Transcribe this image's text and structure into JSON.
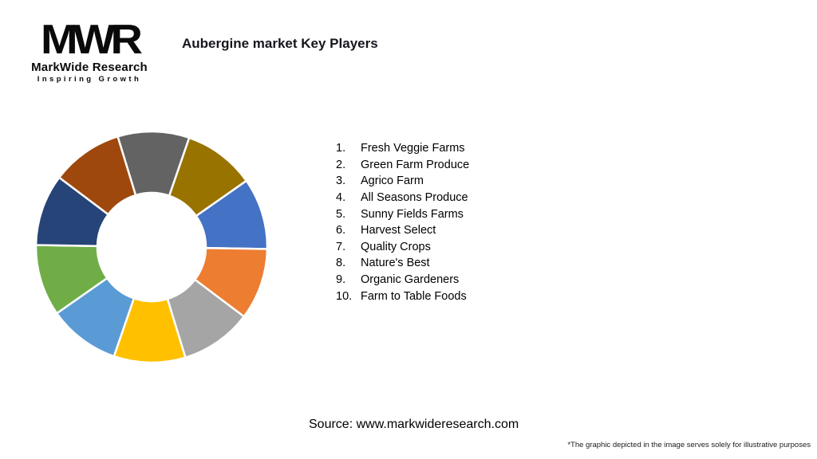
{
  "logo": {
    "acronym": "MWR",
    "name": "MarkWide Research",
    "tagline": "Inspiring Growth"
  },
  "header": {
    "title": "Aubergine market Key Players"
  },
  "chart_data": {
    "type": "pie",
    "subtype": "donut",
    "title": "Aubergine market Key Players",
    "categories": [
      "Fresh Veggie Farms",
      "Green Farm Produce",
      "Agrico Farm",
      "All Seasons Produce",
      "Sunny Fields Farms",
      "Harvest Select",
      "Quality Crops",
      "Nature's Best",
      "Organic Gardeners",
      "Farm to Table Foods"
    ],
    "values": [
      10,
      10,
      10,
      10,
      10,
      10,
      10,
      10,
      10,
      10
    ],
    "colors": [
      "#4472C4",
      "#ED7D31",
      "#A5A5A5",
      "#FFC000",
      "#5B9BD5",
      "#70AD47",
      "#264478",
      "#9E480E",
      "#636363",
      "#997300"
    ],
    "start_angle_deg": 55,
    "inner_radius_ratio": 0.47,
    "slice_border_color": "#FFFFFF",
    "legend_position": "right-numbered-list",
    "grid": false
  },
  "players": [
    {
      "rank": "1.",
      "name": "Fresh Veggie Farms"
    },
    {
      "rank": "2.",
      "name": "Green Farm Produce"
    },
    {
      "rank": "3.",
      "name": "Agrico Farm"
    },
    {
      "rank": "4.",
      "name": "All Seasons Produce"
    },
    {
      "rank": "5.",
      "name": "Sunny Fields Farms"
    },
    {
      "rank": "6.",
      "name": "Harvest Select"
    },
    {
      "rank": "7.",
      "name": "Quality Crops"
    },
    {
      "rank": "8.",
      "name": "Nature's Best"
    },
    {
      "rank": "9.",
      "name": "Organic Gardeners"
    },
    {
      "rank": "10.",
      "name": "Farm to Table Foods"
    }
  ],
  "footer": {
    "source": "Source: www.markwideresearch.com",
    "disclaimer": "*The graphic depicted in the image serves solely for illustrative purposes"
  }
}
